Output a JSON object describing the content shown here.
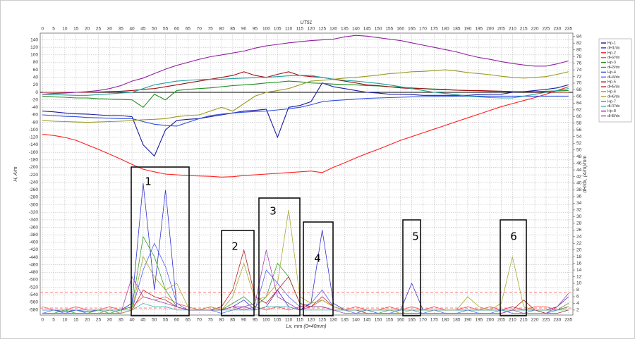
{
  "chart_data": {
    "type": "line",
    "title": "UT51",
    "x_label": "Lx, mm (0=40mm)",
    "y_label": "H, A/m",
    "y2_label": "dH/dx, (A/m)/mm",
    "xlim": [
      -1,
      237
    ],
    "ylim": [
      -594,
      158
    ],
    "y2lim": [
      0.5,
      85
    ],
    "grid": true,
    "legend": "right",
    "xticks": [
      0,
      5,
      10,
      15,
      20,
      25,
      30,
      35,
      40,
      45,
      50,
      55,
      60,
      65,
      70,
      75,
      80,
      85,
      90,
      95,
      100,
      105,
      110,
      115,
      120,
      125,
      130,
      135,
      140,
      145,
      150,
      155,
      160,
      165,
      170,
      175,
      180,
      185,
      190,
      195,
      200,
      205,
      210,
      215,
      220,
      225,
      230,
      235
    ],
    "yticks": [
      140,
      120,
      100,
      80,
      60,
      40,
      20,
      0,
      -20,
      -40,
      -60,
      -80,
      -100,
      -120,
      -140,
      -160,
      -180,
      -200,
      -220,
      -240,
      -260,
      -280,
      -300,
      -320,
      -340,
      -360,
      -380,
      -400,
      -420,
      -440,
      -460,
      -480,
      -500,
      -520,
      -540,
      -560,
      -580
    ],
    "y2ticks": [
      84,
      82,
      80,
      78,
      76,
      74,
      72,
      70,
      68,
      66,
      64,
      62,
      60,
      58,
      56,
      54,
      52,
      50,
      48,
      46,
      44,
      42,
      40,
      38,
      36,
      34,
      32,
      30,
      28,
      26,
      24,
      22,
      20,
      18,
      16,
      14,
      12,
      10,
      8,
      6,
      4,
      2
    ],
    "x": [
      0,
      5,
      10,
      15,
      20,
      25,
      30,
      35,
      40,
      45,
      50,
      55,
      60,
      65,
      70,
      75,
      80,
      85,
      90,
      95,
      100,
      105,
      110,
      115,
      120,
      125,
      130,
      135,
      140,
      145,
      150,
      155,
      160,
      165,
      170,
      175,
      180,
      185,
      190,
      195,
      200,
      205,
      210,
      215,
      220,
      225,
      230,
      235
    ],
    "reference_lines": [
      {
        "value": 7.3,
        "axis": "y2",
        "color": "#ff6060"
      },
      {
        "value": 2.6,
        "axis": "y2",
        "color": "#ff6060"
      }
    ],
    "annotations": [
      "1",
      "2",
      "3",
      "4",
      "5",
      "6"
    ],
    "series": [
      {
        "name": "Hp-1",
        "color": "#1a1aa0",
        "values": [
          -50,
          -52,
          -55,
          -57,
          -58,
          -60,
          -62,
          -62,
          -65,
          -140,
          -170,
          -100,
          -75,
          -72,
          -70,
          -65,
          -60,
          -55,
          -50,
          -48,
          -45,
          -120,
          -40,
          -35,
          -25,
          25,
          15,
          10,
          5,
          0,
          -2,
          -5,
          -5,
          -6,
          -8,
          -8,
          -8,
          -8,
          -8,
          -6,
          -5,
          -5,
          0,
          2,
          5,
          8,
          12,
          20
        ]
      },
      {
        "name": "dH1/dx",
        "color": "#3030d0",
        "axis": "y2",
        "values": [
          2,
          2,
          1.5,
          2,
          1.5,
          2,
          2,
          2,
          4,
          40,
          8,
          38,
          3,
          2,
          2,
          2,
          2,
          3,
          5,
          2,
          3,
          8,
          3,
          2,
          4,
          26,
          4,
          2,
          2,
          2,
          2,
          2,
          2,
          10,
          2,
          2,
          2,
          2,
          2,
          2,
          2,
          2,
          3,
          2,
          2,
          2,
          3,
          6
        ]
      },
      {
        "name": "Hp-2",
        "color": "#ff2020",
        "values": [
          -112,
          -115,
          -120,
          -128,
          -140,
          -152,
          -165,
          -178,
          -192,
          -205,
          -212,
          -218,
          -220,
          -222,
          -223,
          -224,
          -226,
          -225,
          -222,
          -220,
          -218,
          -216,
          -214,
          -212,
          -210,
          -214,
          -200,
          -188,
          -175,
          -163,
          -152,
          -140,
          -128,
          -118,
          -108,
          -98,
          -88,
          -78,
          -68,
          -58,
          -48,
          -38,
          -30,
          -22,
          -14,
          -5,
          5,
          15
        ]
      },
      {
        "name": "dH2/dx",
        "color": "#ff5050",
        "axis": "y2",
        "values": [
          3,
          2,
          2,
          3,
          2,
          2,
          3,
          2,
          3,
          6,
          5,
          6,
          4,
          3,
          2,
          3,
          2,
          3,
          2,
          3,
          2,
          3,
          2,
          3,
          3,
          5,
          3,
          2,
          3,
          2,
          2,
          3,
          2,
          3,
          2,
          3,
          2,
          2,
          3,
          2,
          3,
          2,
          3,
          2,
          3,
          3,
          2,
          3
        ]
      },
      {
        "name": "Hp-3",
        "color": "#209020",
        "values": [
          -10,
          -12,
          -13,
          -15,
          -15,
          -17,
          -18,
          -19,
          -20,
          -40,
          -5,
          -20,
          5,
          8,
          10,
          12,
          15,
          18,
          20,
          22,
          25,
          27,
          30,
          28,
          25,
          24,
          22,
          21,
          20,
          18,
          17,
          15,
          14,
          12,
          10,
          9,
          8,
          6,
          5,
          4,
          3,
          3,
          2,
          2,
          2,
          3,
          4,
          5
        ]
      },
      {
        "name": "dH3/dx",
        "color": "#30a030",
        "axis": "y2",
        "values": [
          1,
          1,
          2,
          1,
          1,
          2,
          1,
          2,
          3,
          24,
          18,
          8,
          3,
          2,
          2,
          2,
          2,
          4,
          6,
          3,
          6,
          16,
          12,
          4,
          3,
          3,
          2,
          2,
          2,
          2,
          1,
          2,
          2,
          2,
          2,
          2,
          2,
          2,
          2,
          2,
          2,
          2,
          2,
          2,
          2,
          2,
          2,
          3
        ]
      },
      {
        "name": "Hp-4",
        "color": "#3050e0",
        "values": [
          -60,
          -62,
          -64,
          -65,
          -67,
          -68,
          -69,
          -70,
          -70,
          -78,
          -85,
          -88,
          -90,
          -80,
          -70,
          -62,
          -58,
          -55,
          -53,
          -51,
          -50,
          -47,
          -44,
          -40,
          -33,
          -25,
          -22,
          -20,
          -18,
          -16,
          -15,
          -14,
          -13,
          -12,
          -12,
          -11,
          -11,
          -10,
          -10,
          -10,
          -10,
          -10,
          -10,
          -10,
          -10,
          -10,
          -10,
          -10
        ]
      },
      {
        "name": "dH4/dx",
        "color": "#5060f0",
        "axis": "y2",
        "values": [
          1,
          2,
          1,
          2,
          1,
          1,
          2,
          1,
          2,
          14,
          22,
          15,
          4,
          2,
          2,
          2,
          1,
          2,
          3,
          2,
          14,
          10,
          6,
          3,
          4,
          8,
          3,
          2,
          1,
          2,
          1,
          1,
          2,
          2,
          1,
          2,
          1,
          1,
          2,
          1,
          1,
          2,
          1,
          1,
          2,
          1,
          2,
          4
        ]
      },
      {
        "name": "Hp-5",
        "color": "#a01010",
        "values": [
          0,
          0,
          0,
          0,
          0,
          1,
          2,
          3,
          5,
          8,
          10,
          15,
          20,
          25,
          30,
          35,
          40,
          45,
          55,
          45,
          40,
          48,
          55,
          45,
          42,
          40,
          35,
          30,
          25,
          20,
          18,
          15,
          12,
          10,
          10,
          8,
          7,
          6,
          5,
          5,
          4,
          3,
          2,
          2,
          1,
          1,
          0,
          0
        ]
      },
      {
        "name": "dH5/dx",
        "color": "#b02020",
        "axis": "y2",
        "values": [
          1,
          1,
          1,
          1,
          1,
          1,
          1,
          1,
          2,
          8,
          6,
          5,
          3,
          2,
          2,
          2,
          3,
          8,
          20,
          6,
          4,
          8,
          12,
          4,
          3,
          6,
          3,
          2,
          2,
          1,
          1,
          1,
          1,
          1,
          1,
          1,
          1,
          1,
          1,
          1,
          1,
          1,
          2,
          5,
          2,
          1,
          1,
          2
        ]
      },
      {
        "name": "Hp-6",
        "color": "#9a9a20",
        "values": [
          -75,
          -77,
          -78,
          -79,
          -80,
          -79,
          -78,
          -77,
          -75,
          -73,
          -72,
          -70,
          -65,
          -62,
          -60,
          -50,
          -40,
          -50,
          -30,
          -10,
          0,
          5,
          10,
          20,
          30,
          32,
          35,
          38,
          40,
          43,
          46,
          50,
          52,
          55,
          56,
          58,
          60,
          57,
          53,
          50,
          47,
          43,
          40,
          38,
          40,
          42,
          48,
          55
        ]
      },
      {
        "name": "dH6/dx",
        "color": "#a8a830",
        "axis": "y2",
        "values": [
          1,
          1,
          1,
          1,
          1,
          1,
          2,
          1,
          2,
          18,
          12,
          8,
          10,
          3,
          2,
          3,
          2,
          6,
          16,
          5,
          6,
          10,
          32,
          6,
          4,
          5,
          3,
          2,
          2,
          2,
          2,
          2,
          1,
          2,
          2,
          2,
          2,
          2,
          6,
          3,
          2,
          4,
          18,
          3,
          2,
          2,
          2,
          4
        ]
      },
      {
        "name": "Hp-7",
        "color": "#20a0a0",
        "values": [
          -5,
          -6,
          -7,
          -8,
          -8,
          -6,
          -4,
          -2,
          0,
          10,
          20,
          25,
          30,
          32,
          34,
          35,
          35,
          37,
          38,
          39,
          40,
          42,
          44,
          45,
          45,
          40,
          35,
          32,
          30,
          27,
          24,
          20,
          15,
          10,
          5,
          0,
          -3,
          -6,
          -10,
          -12,
          -14,
          -15,
          -15,
          -10,
          -5,
          0,
          5,
          10
        ]
      },
      {
        "name": "dH7/dx",
        "color": "#30b0b0",
        "axis": "y2",
        "values": [
          2,
          2,
          2,
          2,
          2,
          2,
          2,
          2,
          2,
          4,
          3,
          3,
          2,
          2,
          2,
          2,
          2,
          2,
          2,
          2,
          3,
          3,
          3,
          2,
          2,
          2,
          2,
          2,
          2,
          2,
          2,
          2,
          2,
          2,
          2,
          2,
          2,
          2,
          2,
          2,
          2,
          2,
          2,
          2,
          2,
          2,
          2,
          2
        ]
      },
      {
        "name": "Hp-8",
        "color": "#9020a0",
        "values": [
          -5,
          -3,
          -2,
          0,
          2,
          5,
          10,
          18,
          30,
          38,
          50,
          62,
          72,
          80,
          88,
          95,
          100,
          105,
          110,
          118,
          124,
          128,
          132,
          135,
          138,
          140,
          142,
          148,
          152,
          150,
          146,
          142,
          138,
          132,
          126,
          120,
          114,
          108,
          100,
          93,
          88,
          82,
          77,
          73,
          70,
          70,
          76,
          84
        ]
      },
      {
        "name": "dH8/dx",
        "color": "#a040b0",
        "axis": "y2",
        "values": [
          1,
          1,
          1,
          1,
          1,
          1,
          1,
          1,
          12,
          6,
          5,
          4,
          3,
          2,
          2,
          2,
          2,
          3,
          3,
          4,
          20,
          6,
          4,
          2,
          3,
          3,
          2,
          1,
          1,
          1,
          1,
          1,
          1,
          1,
          1,
          1,
          1,
          1,
          1,
          1,
          1,
          1,
          2,
          1,
          1,
          1,
          3,
          7
        ]
      }
    ]
  }
}
